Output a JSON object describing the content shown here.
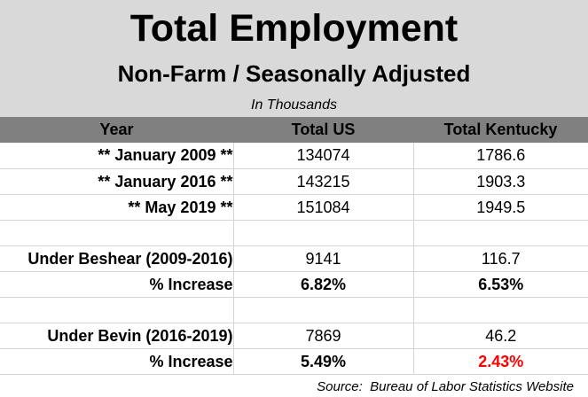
{
  "title": "Total Employment",
  "subtitle": "Non-Farm / Seasonally Adjusted",
  "units": "In Thousands",
  "headers": {
    "year": "Year",
    "us": "Total US",
    "ky": "Total Kentucky"
  },
  "rows": [
    {
      "label": "** January 2009 **",
      "us": "134074",
      "ky": "1786.6"
    },
    {
      "label": "** January 2016 **",
      "us": "143215",
      "ky": "1903.3"
    },
    {
      "label": "** May 2019 **",
      "us": "151084",
      "ky": "1949.5"
    }
  ],
  "beshear": {
    "label": "Under Beshear (2009-2016)",
    "us": "9141",
    "ky": "116.7",
    "pct_label": "% Increase",
    "pct_us": "6.82%",
    "pct_ky": "6.53%"
  },
  "bevin": {
    "label": "Under Bevin (2016-2019)",
    "us": "7869",
    "ky": "46.2",
    "pct_label": "% Increase",
    "pct_us": "5.49%",
    "pct_ky": "2.43%"
  },
  "source": "Source:  Bureau of Labor Statistics Website",
  "colors": {
    "banner": "#d9d9d9",
    "header_row": "#808080",
    "highlight": "#ff0000"
  }
}
